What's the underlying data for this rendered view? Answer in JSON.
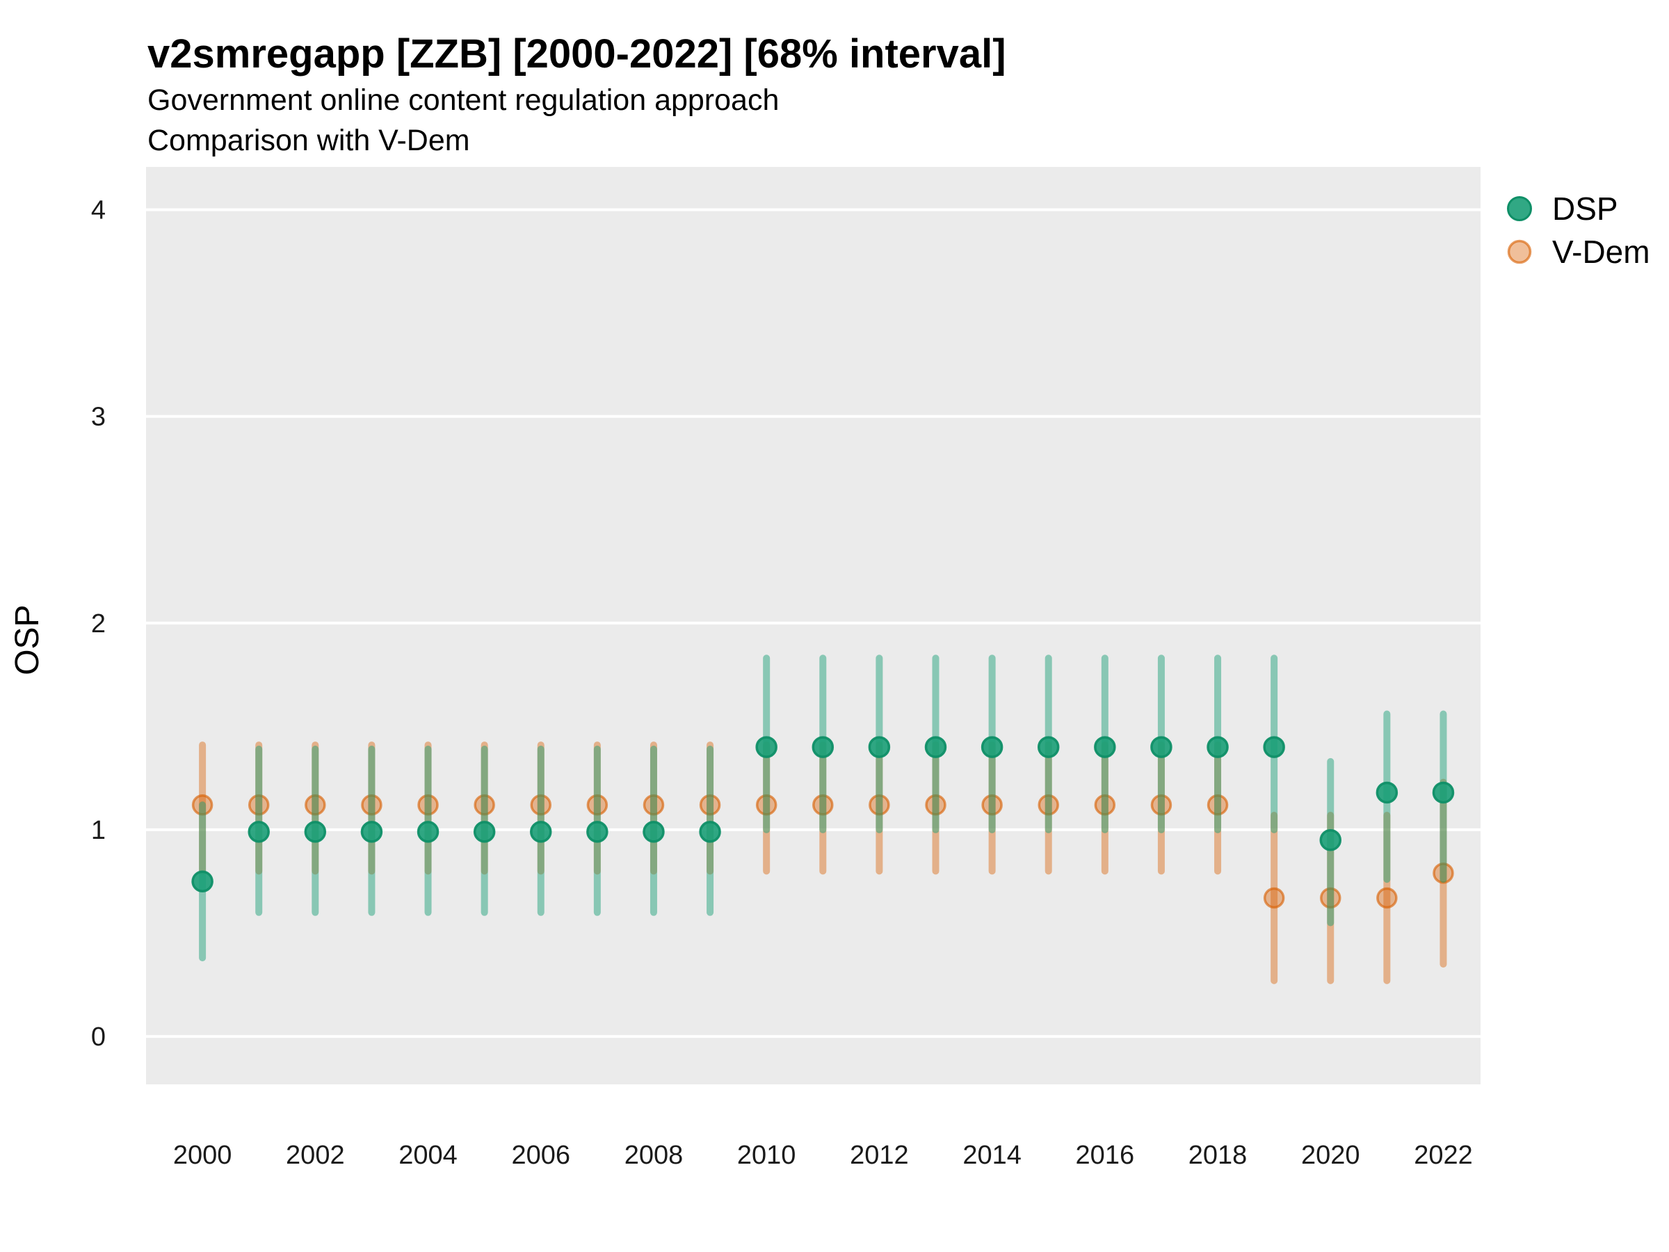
{
  "header": {
    "title": "v2smregapp [ZZB] [2000-2022] [68% interval]",
    "subtitle1": "Government online content regulation approach",
    "subtitle2": "Comparison with V-Dem"
  },
  "axes": {
    "y_title": "OSP",
    "y_ticks": [
      0,
      1,
      2,
      3,
      4
    ],
    "x_ticks": [
      2000,
      2002,
      2004,
      2006,
      2008,
      2010,
      2012,
      2014,
      2016,
      2018,
      2020,
      2022
    ]
  },
  "legend": {
    "items": [
      {
        "label": "DSP",
        "color": "#1b9e77"
      },
      {
        "label": "V-Dem",
        "color": "#d95f02"
      }
    ]
  },
  "colors": {
    "panel": "#ebebeb",
    "grid": "#ffffff",
    "dsp": "#1b9e77",
    "dsp_dark": "#0f8f67",
    "vdem": "#d95f02",
    "tick_text": "#1a1a1a",
    "title_text": "#000000"
  },
  "chart_data": {
    "type": "pointrange",
    "title": "v2smregapp [ZZB] [2000-2022] [68% interval]",
    "subtitle": "Government online content regulation approach / Comparison with V-Dem",
    "interval": "68%",
    "xlabel": "",
    "ylabel": "OSP",
    "x_domain": [
      1999.0,
      2022.66
    ],
    "y_domain": [
      -0.232,
      4.207
    ],
    "grid": "major-horizontal",
    "legend_position": "right-top",
    "x": [
      2000,
      2001,
      2002,
      2003,
      2004,
      2005,
      2006,
      2007,
      2008,
      2009,
      2010,
      2011,
      2012,
      2013,
      2014,
      2015,
      2016,
      2017,
      2018,
      2019,
      2020,
      2021,
      2022
    ],
    "series": [
      {
        "name": "DSP",
        "est": [
          0.75,
          0.99,
          0.99,
          0.99,
          0.99,
          0.99,
          0.99,
          0.99,
          0.99,
          0.99,
          1.4,
          1.4,
          1.4,
          1.4,
          1.4,
          1.4,
          1.4,
          1.4,
          1.4,
          1.4,
          0.95,
          1.18,
          1.18
        ],
        "lo": [
          0.38,
          0.6,
          0.6,
          0.6,
          0.6,
          0.6,
          0.6,
          0.6,
          0.6,
          0.6,
          1.0,
          1.0,
          1.0,
          1.0,
          1.0,
          1.0,
          1.0,
          1.0,
          1.0,
          1.0,
          0.55,
          0.76,
          0.76
        ],
        "hi": [
          1.12,
          1.39,
          1.39,
          1.39,
          1.39,
          1.39,
          1.39,
          1.39,
          1.39,
          1.39,
          1.83,
          1.83,
          1.83,
          1.83,
          1.83,
          1.83,
          1.83,
          1.83,
          1.83,
          1.83,
          1.33,
          1.56,
          1.56
        ]
      },
      {
        "name": "V-Dem",
        "est": [
          1.12,
          1.12,
          1.12,
          1.12,
          1.12,
          1.12,
          1.12,
          1.12,
          1.12,
          1.12,
          1.12,
          1.12,
          1.12,
          1.12,
          1.12,
          1.12,
          1.12,
          1.12,
          1.12,
          0.67,
          0.67,
          0.67,
          0.79
        ],
        "lo": [
          0.8,
          0.8,
          0.8,
          0.8,
          0.8,
          0.8,
          0.8,
          0.8,
          0.8,
          0.8,
          0.8,
          0.8,
          0.8,
          0.8,
          0.8,
          0.8,
          0.8,
          0.8,
          0.8,
          0.27,
          0.27,
          0.27,
          0.35
        ],
        "hi": [
          1.41,
          1.41,
          1.41,
          1.41,
          1.41,
          1.41,
          1.41,
          1.41,
          1.41,
          1.41,
          1.41,
          1.41,
          1.41,
          1.41,
          1.41,
          1.41,
          1.41,
          1.41,
          1.41,
          1.07,
          1.07,
          1.07,
          1.23
        ]
      }
    ]
  }
}
